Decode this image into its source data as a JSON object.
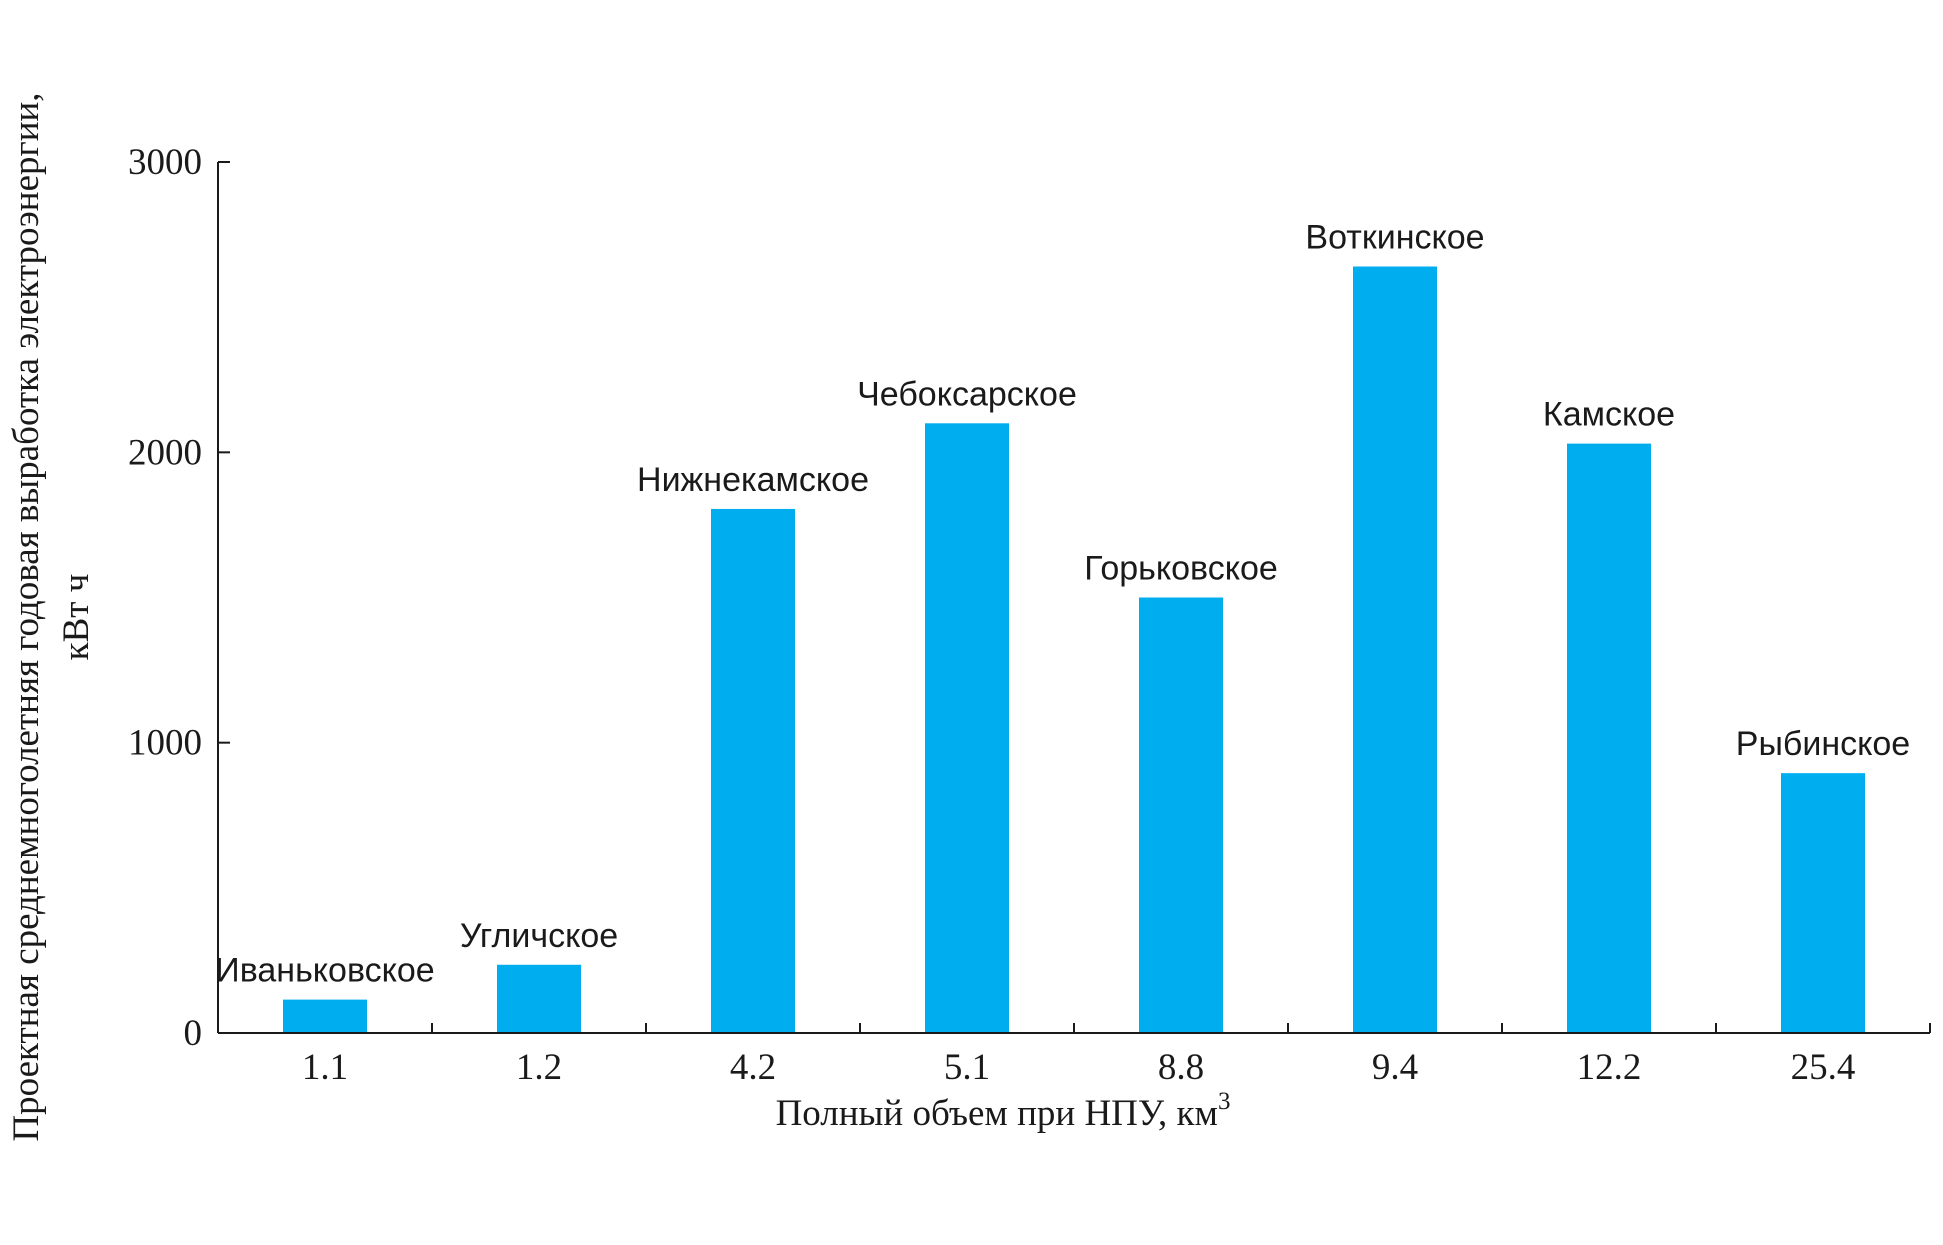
{
  "chart_data": {
    "type": "bar",
    "categories": [
      "1.1",
      "1.2",
      "4.2",
      "5.1",
      "8.8",
      "9.4",
      "12.2",
      "25.4"
    ],
    "bar_labels": [
      "Иваньковское",
      "Угличское",
      "Нижнекамское",
      "Чебоксарское",
      "Горьковское",
      "Воткинское",
      "Камское",
      "Рыбинское"
    ],
    "values": [
      115,
      235,
      1805,
      2100,
      1500,
      2640,
      2030,
      895
    ],
    "xlabel": "Полный объем при НПУ, км",
    "xlabel_superscript": "3",
    "ylabel_line1": "Проектная среднемноголетняя годовая выработка электроэнергии,",
    "ylabel_line2": "кВт ч",
    "ylim": [
      0,
      3000
    ],
    "yticks": [
      0,
      1000,
      2000,
      3000
    ],
    "ytick_labels": [
      "0",
      "1000",
      "2000",
      "3000"
    ],
    "grid": false,
    "bar_color": "#00AEEF"
  }
}
